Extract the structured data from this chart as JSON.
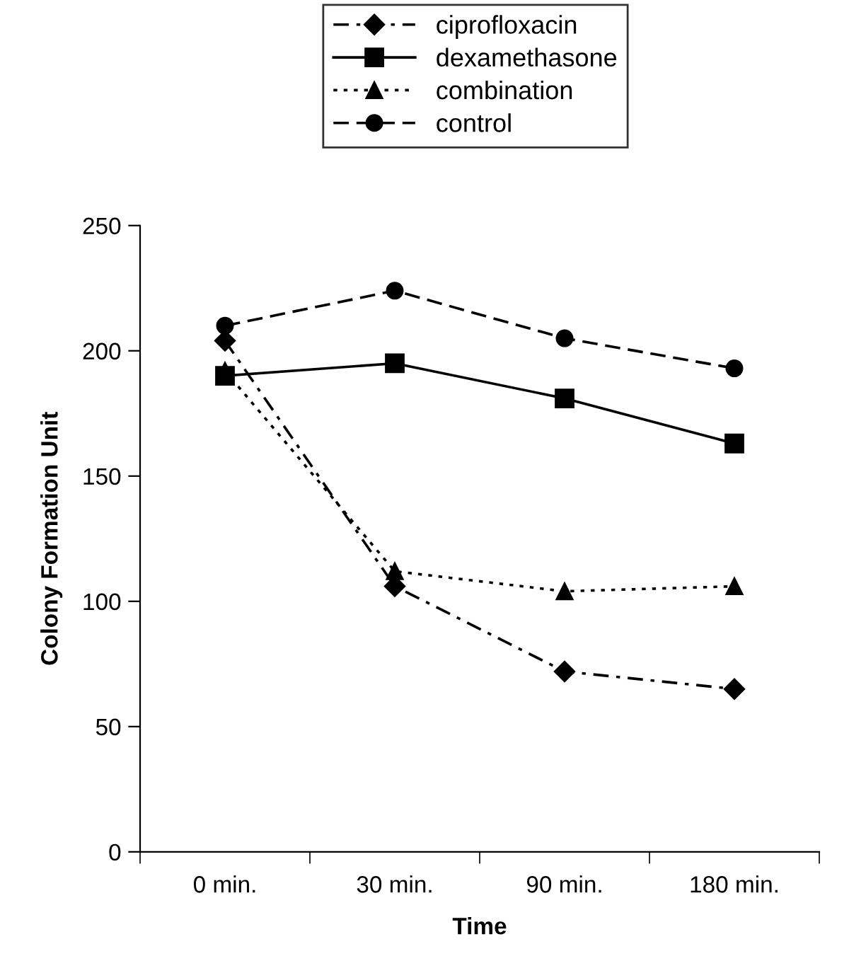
{
  "chart_data": {
    "type": "line",
    "xlabel": "Time",
    "ylabel": "Colony Formation Unit",
    "categories": [
      "0 min.",
      "30 min.",
      "90 min.",
      "180 min."
    ],
    "series": [
      {
        "name": "ciprofloxacin",
        "color": "#000000",
        "marker": "diamond",
        "line_style": "dashdot",
        "values": [
          204,
          106,
          72,
          65
        ]
      },
      {
        "name": "dexamethasone",
        "color": "#000000",
        "marker": "square",
        "line_style": "solid",
        "values": [
          190,
          195,
          181,
          163
        ]
      },
      {
        "name": "combination",
        "color": "#000000",
        "marker": "triangle",
        "line_style": "dotted",
        "values": [
          192,
          112,
          104,
          106
        ]
      },
      {
        "name": "control",
        "color": "#000000",
        "marker": "circle",
        "line_style": "dashed",
        "values": [
          210,
          224,
          205,
          193
        ]
      }
    ],
    "ylim": [
      0,
      250
    ],
    "yticks": [
      0,
      50,
      100,
      150,
      200,
      250
    ],
    "grid": false,
    "legend": "top"
  }
}
